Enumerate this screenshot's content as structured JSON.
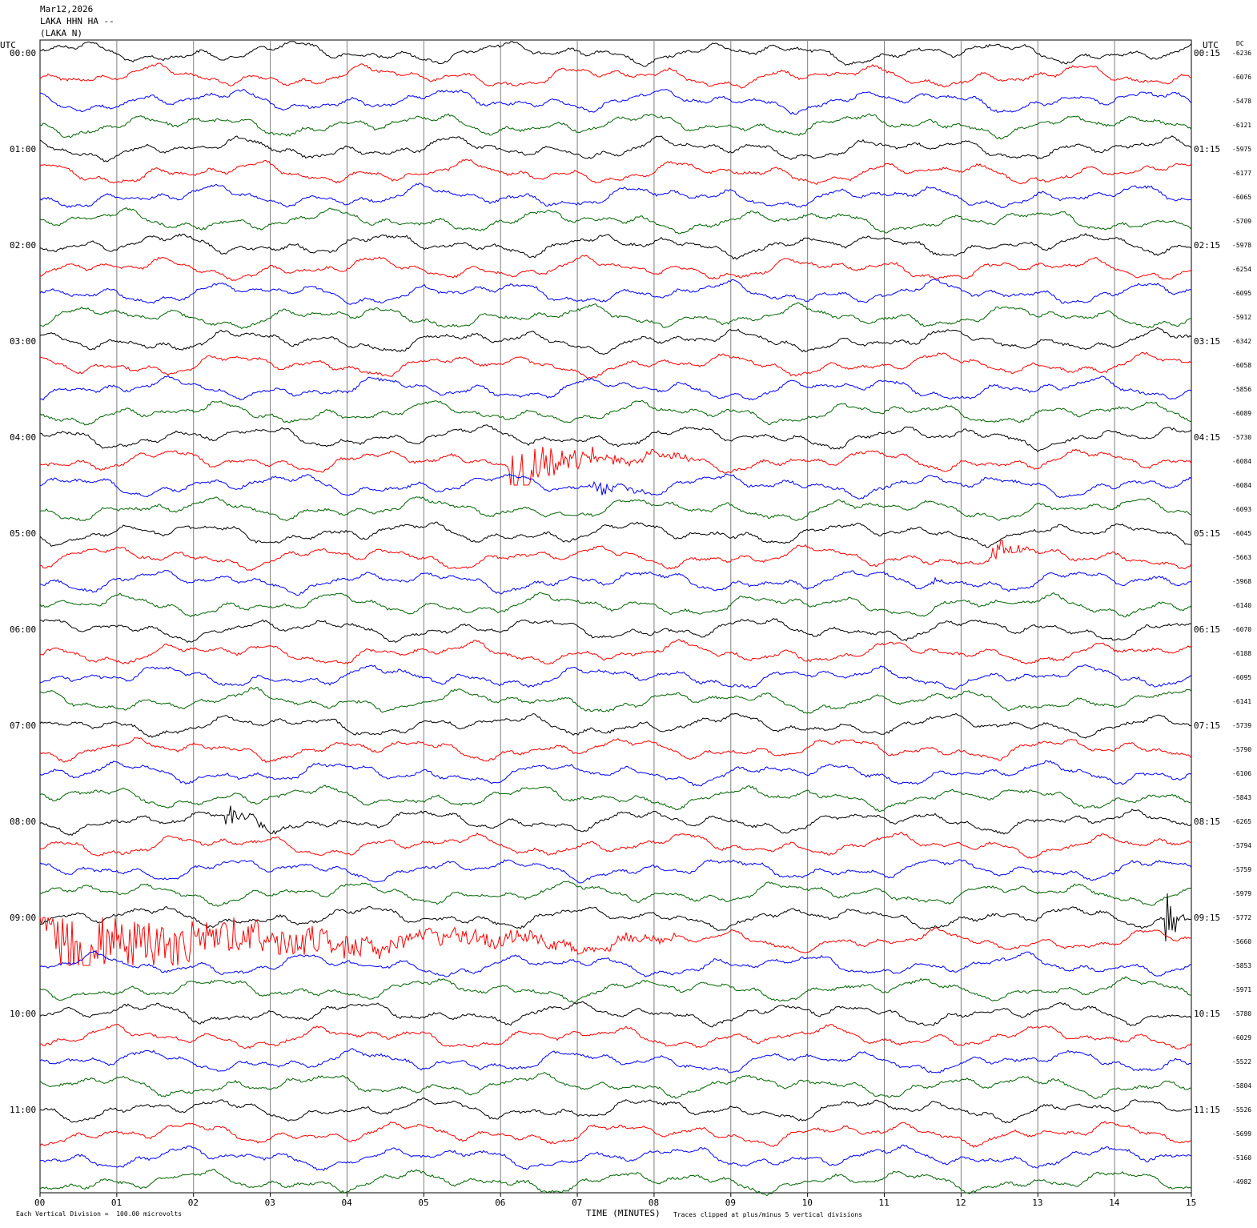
{
  "header": {
    "date": "Mar12,2026",
    "station": "LAKA HHN HA --",
    "station_alt": "(LAKA N)"
  },
  "left_axis_title": "UTC",
  "right_axis_title": "UTC",
  "dc_title": "DC",
  "footer": {
    "scale_note": "Each Vertical Division =  100.00 microvolts",
    "xlabel": "TIME (MINUTES)",
    "clip_note": "Traces clipped at plus/minus 5 vertical divisions"
  },
  "colors": {
    "trace_cycle": [
      "#000000",
      "#ff0000",
      "#0000ff",
      "#006400"
    ],
    "grid": "#808080"
  },
  "chart_data": {
    "type": "line",
    "title": "Mar12,2026 LAKA HHN HA -- (LAKA N)",
    "xlabel": "TIME (MINUTES)",
    "xlim": [
      0,
      15
    ],
    "x_ticks": [
      "00",
      "01",
      "02",
      "03",
      "04",
      "05",
      "06",
      "07",
      "08",
      "09",
      "10",
      "11",
      "12",
      "13",
      "14",
      "15"
    ],
    "left_time_labels": [
      "00:00",
      "01:00",
      "02:00",
      "03:00",
      "04:00",
      "05:00",
      "06:00",
      "07:00",
      "08:00",
      "09:00",
      "10:00",
      "11:00"
    ],
    "right_time_labels": [
      "00:15",
      "01:15",
      "02:15",
      "03:15",
      "04:15",
      "05:15",
      "06:15",
      "07:15",
      "08:15",
      "09:15",
      "10:15",
      "11:15"
    ],
    "trace_count": 48,
    "trace_minutes": 15,
    "dc_offsets": [
      "-6236",
      "-6076",
      "-5478",
      "-6121",
      "-5975",
      "-6177",
      "-6065",
      "-5709",
      "-5978",
      "-6254",
      "-6095",
      "-5912",
      "-6342",
      "-6058",
      "-5856",
      "-6089",
      "-5730",
      "-6084",
      "-6084",
      "-6093",
      "-6045",
      "-5663",
      "-5968",
      "-6140",
      "-6070",
      "-6188",
      "-6095",
      "-6141",
      "-5739",
      "-5790",
      "-6106",
      "-5843",
      "-6265",
      "-5794",
      "-5759",
      "-5979",
      "-5772",
      "-5660",
      "-5853",
      "-5971",
      "-5780",
      "-6029",
      "-5522",
      "-5804",
      "-5526",
      "-5699",
      "-5160",
      "-4982"
    ],
    "events": [
      {
        "trace": 17,
        "start_min": 6.1,
        "end_min": 8.5,
        "amplitude_div": 3.5
      },
      {
        "trace": 18,
        "start_min": 7.2,
        "end_min": 7.9,
        "amplitude_div": 1.5
      },
      {
        "trace": 21,
        "start_min": 12.4,
        "end_min": 12.9,
        "amplitude_div": 2.5
      },
      {
        "trace": 22,
        "start_min": 11.6,
        "end_min": 11.9,
        "amplitude_div": 0.7
      },
      {
        "trace": 32,
        "start_min": 2.4,
        "end_min": 3.3,
        "amplitude_div": 1.6
      },
      {
        "trace": 36,
        "start_min": 14.65,
        "end_min": 15.0,
        "amplitude_div": 5
      },
      {
        "trace": 37,
        "start_min": 0.0,
        "end_min": 8.3,
        "amplitude_div": 5
      },
      {
        "trace": 47,
        "start_min": 6.2,
        "end_min": 6.45,
        "amplitude_div": 0.6
      }
    ],
    "clip_divisions": 5,
    "division_microvolts": 100.0
  }
}
